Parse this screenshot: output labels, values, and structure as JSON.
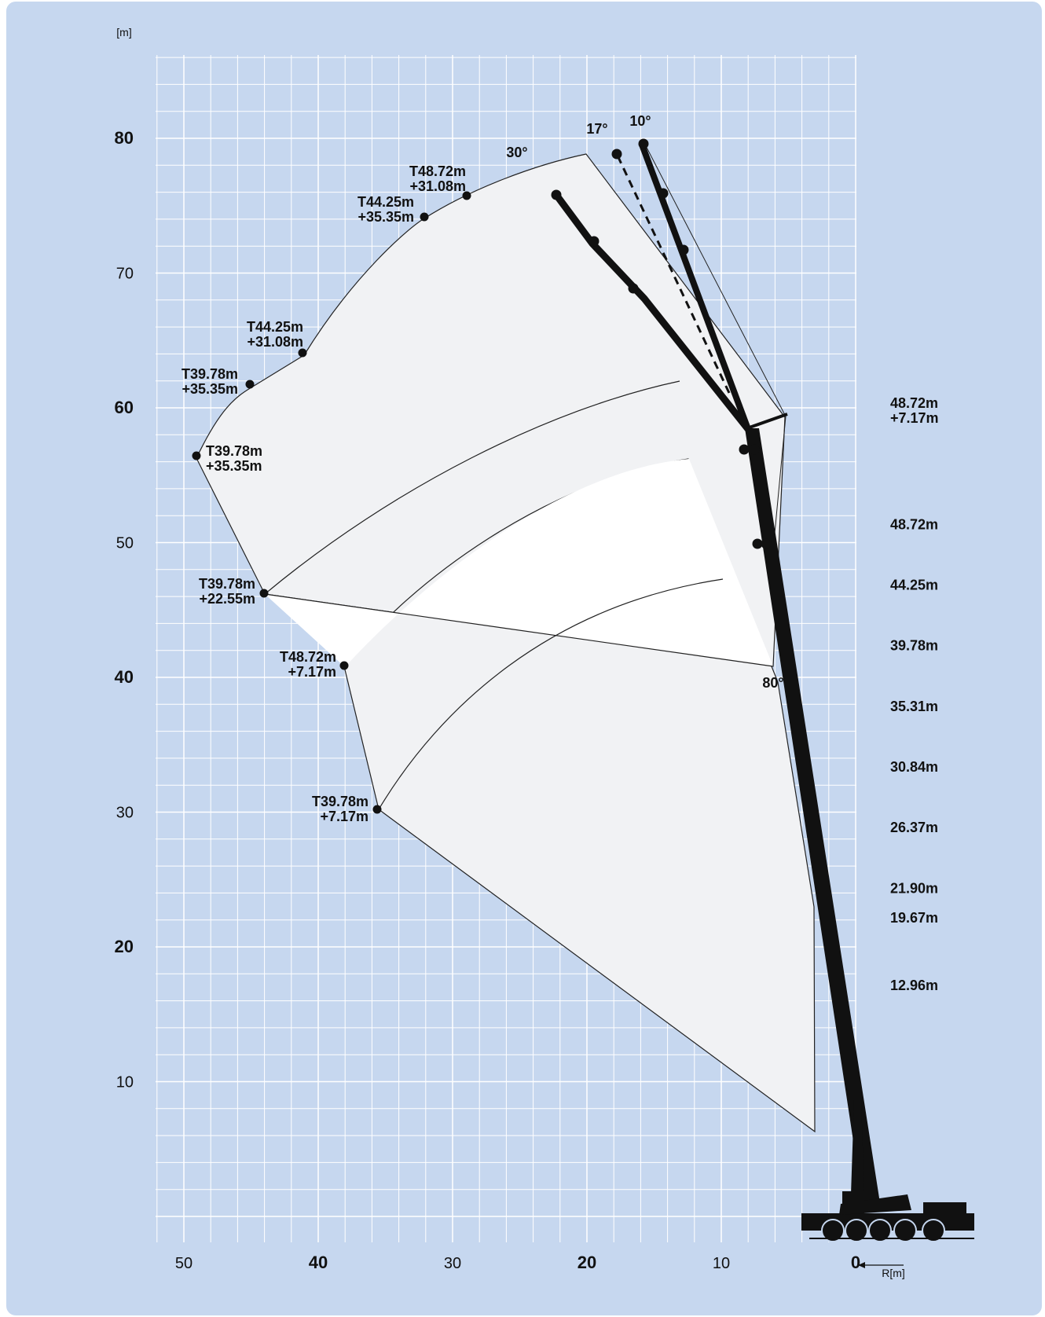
{
  "chart_data": {
    "type": "diagram",
    "y_unit": "[m]",
    "x_unit": "R[m]",
    "x_ticks": [
      {
        "value": 50,
        "label": "50",
        "bold": false
      },
      {
        "value": 40,
        "label": "40",
        "bold": true
      },
      {
        "value": 30,
        "label": "30",
        "bold": false
      },
      {
        "value": 20,
        "label": "20",
        "bold": true
      },
      {
        "value": 10,
        "label": "10",
        "bold": false
      },
      {
        "value": 0,
        "label": "0",
        "bold": true
      }
    ],
    "y_ticks": [
      {
        "value": 80,
        "label": "80",
        "bold": true
      },
      {
        "value": 70,
        "label": "70",
        "bold": false
      },
      {
        "value": 60,
        "label": "60",
        "bold": true
      },
      {
        "value": 50,
        "label": "50",
        "bold": false
      },
      {
        "value": 40,
        "label": "40",
        "bold": true
      },
      {
        "value": 30,
        "label": "30",
        "bold": false
      },
      {
        "value": 20,
        "label": "20",
        "bold": true
      },
      {
        "value": 10,
        "label": "10",
        "bold": false
      }
    ],
    "xlim": [
      0,
      50
    ],
    "ylim": [
      0,
      80
    ],
    "grid": true,
    "angle_labels": [
      "30°",
      "17°",
      "10°",
      "80°"
    ],
    "point_labels": [
      {
        "line1": "T48.72m",
        "line2": "+31.08m"
      },
      {
        "line1": "T44.25m",
        "line2": "+35.35m"
      },
      {
        "line1": "T44.25m",
        "line2": "+31.08m"
      },
      {
        "line1": "T39.78m",
        "line2": "+35.35m"
      },
      {
        "line1": "T39.78m",
        "line2": "+35.35m"
      },
      {
        "line1": "T39.78m",
        "line2": "+22.55m"
      },
      {
        "line1": "T48.72m",
        "line2": "+7.17m"
      },
      {
        "line1": "T39.78m",
        "line2": "+7.17m"
      }
    ],
    "boom_lengths": [
      {
        "label": "48.72m",
        "sub": "+7.17m",
        "height": 60
      },
      {
        "label": "48.72m",
        "height": 51
      },
      {
        "label": "44.25m",
        "height": 46.5
      },
      {
        "label": "39.78m",
        "height": 42
      },
      {
        "label": "35.31m",
        "height": 37.5
      },
      {
        "label": "30.84m",
        "height": 33
      },
      {
        "label": "26.37m",
        "height": 28.5
      },
      {
        "label": "21.90m",
        "height": 24
      },
      {
        "label": "19.67m",
        "height": 21.8
      },
      {
        "label": "12.96m",
        "height": 16.8
      }
    ]
  }
}
